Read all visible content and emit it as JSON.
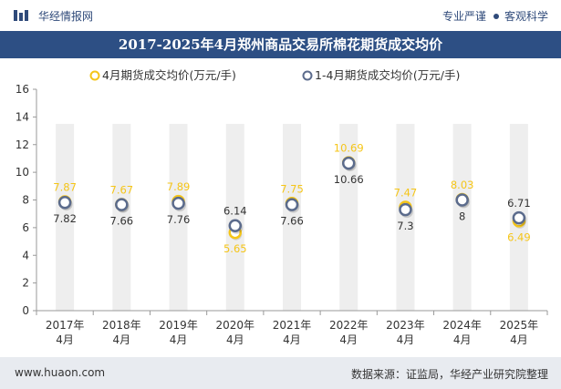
{
  "header": {
    "brand": "华经情报网",
    "tag1": "专业严谨",
    "tag2": "客观科学",
    "title": "2017-2025年4月郑州商品交易所棉花期货成交均价"
  },
  "footer": {
    "website": "www.huaon.com",
    "source": "数据来源：证监局，华经产业研究院整理"
  },
  "colors": {
    "brand_blue": "#2d4f84",
    "april_series": "#f5c518",
    "ytd_series": "#5b6b8c"
  },
  "chart_data": {
    "type": "scatter",
    "categories": [
      [
        "2017年",
        "4月"
      ],
      [
        "2018年",
        "4月"
      ],
      [
        "2019年",
        "4月"
      ],
      [
        "2020年",
        "4月"
      ],
      [
        "2021年",
        "4月"
      ],
      [
        "2022年",
        "4月"
      ],
      [
        "2023年",
        "4月"
      ],
      [
        "2024年",
        "4月"
      ],
      [
        "2025年",
        "4月"
      ]
    ],
    "ylim": [
      0,
      16
    ],
    "yticks": [
      0,
      2,
      4,
      6,
      8,
      10,
      12,
      14,
      16
    ],
    "legend_position": "top",
    "series": [
      {
        "name": "4月期货成交均价(万元/手)",
        "values": [
          7.87,
          7.67,
          7.89,
          5.65,
          7.75,
          10.69,
          7.47,
          8.03,
          6.49
        ]
      },
      {
        "name": "1-4月期货成交均价(万元/手)",
        "values": [
          7.82,
          7.66,
          7.76,
          6.14,
          7.66,
          10.66,
          7.3,
          8,
          6.71
        ]
      }
    ]
  }
}
